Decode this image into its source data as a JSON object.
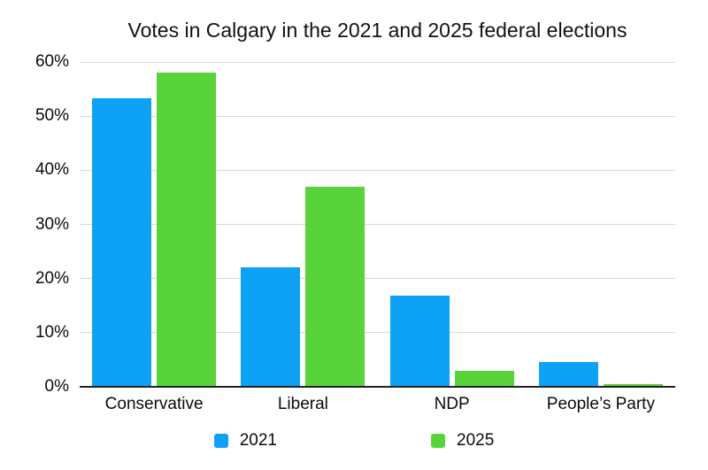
{
  "title": "Votes in Calgary in the 2021 and 2025 federal elections",
  "chart_data": {
    "type": "bar",
    "title": "Votes in Calgary in the 2021 and 2025 federal elections",
    "categories": [
      "Conservative",
      "Liberal",
      "NDP",
      "People’s Party"
    ],
    "series": [
      {
        "name": "2021",
        "color": "#0ea2f6",
        "values": [
          53.3,
          22.0,
          16.8,
          4.6
        ]
      },
      {
        "name": "2025",
        "color": "#58d43a",
        "values": [
          58.0,
          37.0,
          3.0,
          0.5
        ]
      }
    ],
    "xlabel": "",
    "ylabel": "",
    "ylim": [
      0,
      60
    ],
    "yticks": [
      "0%",
      "10%",
      "20%",
      "30%",
      "40%",
      "50%",
      "60%"
    ],
    "grid": true,
    "legend_position": "bottom"
  }
}
